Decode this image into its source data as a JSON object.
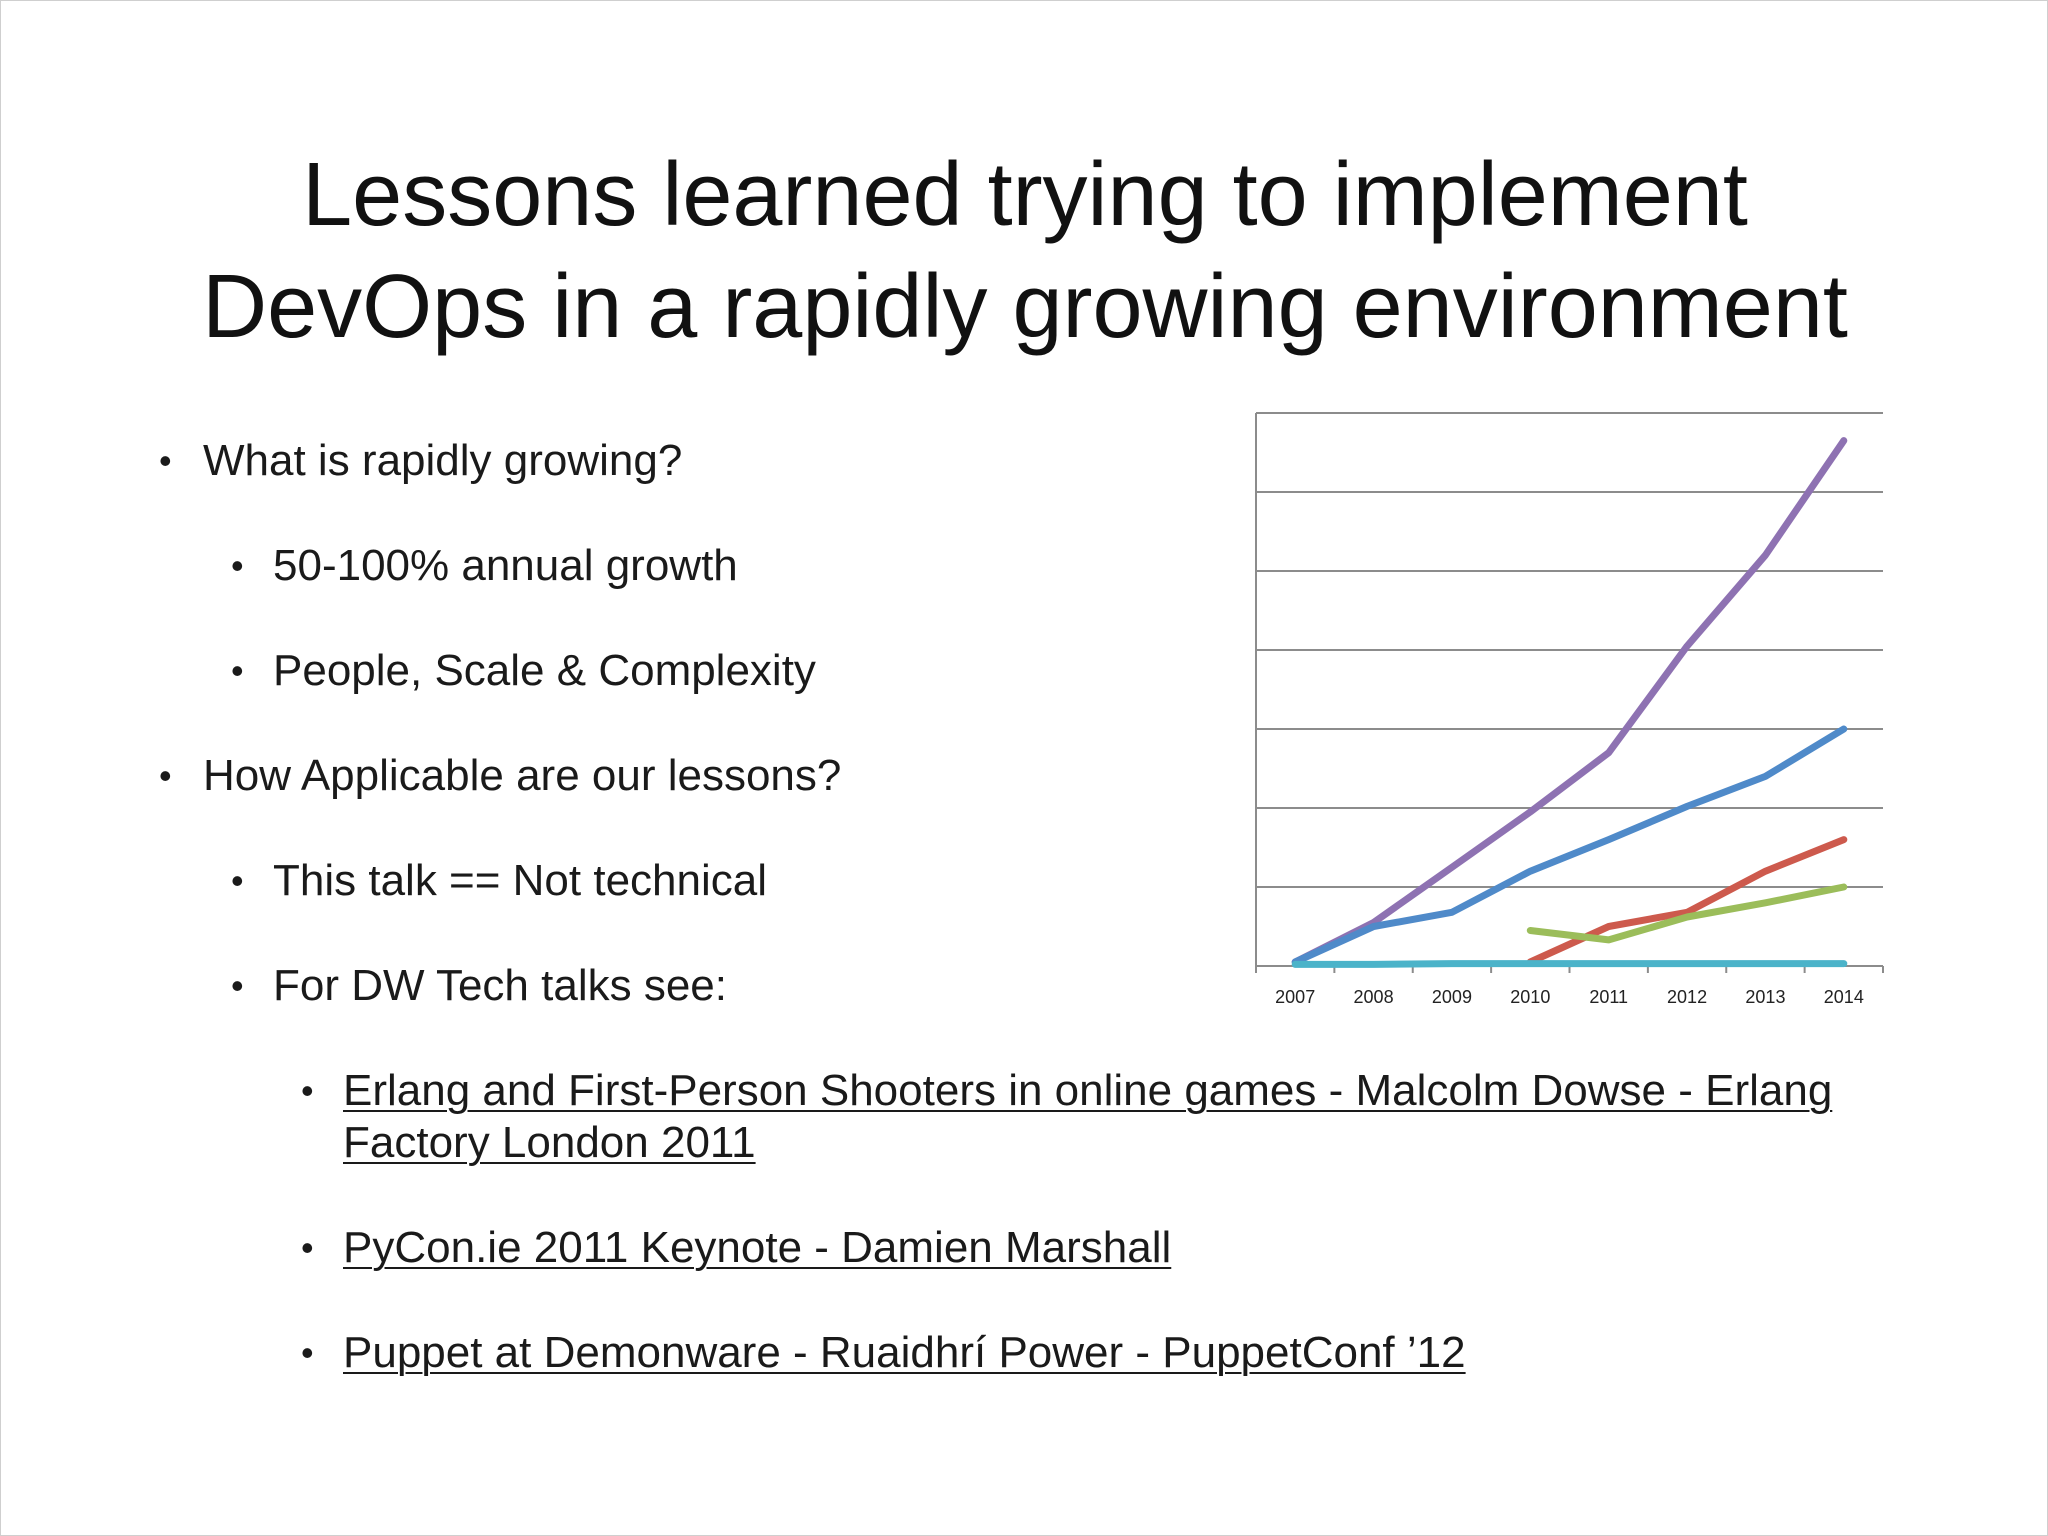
{
  "slide": {
    "title_line1": "Lessons learned trying to implement",
    "title_line2": "DevOps in a rapidly growing environment",
    "bullets": [
      {
        "text": "What is rapidly growing?"
      },
      {
        "text": "50-100% annual growth"
      },
      {
        "text": "People, Scale & Complexity"
      },
      {
        "text": "How Applicable are our lessons?"
      },
      {
        "text": "This talk == Not technical"
      },
      {
        "text": "For DW Tech talks see:"
      }
    ],
    "links": [
      {
        "text": "Erlang and First-Person Shooters in online games - Malcolm Dowse - Erlang Factory London 2011"
      },
      {
        "text": "PyCon.ie 2011 Keynote - Damien Marshall"
      },
      {
        "text": "Puppet at Demonware - Ruaidhrí Power - PuppetConf ’12"
      }
    ],
    "bullet_glyph": "•"
  },
  "chart_data": {
    "type": "line",
    "categories": [
      "2007",
      "2008",
      "2009",
      "2010",
      "2011",
      "2012",
      "2013",
      "2014"
    ],
    "ylim": [
      0,
      7
    ],
    "grid": true,
    "legend": "none",
    "series": [
      {
        "color": "#8e72b2",
        "values": [
          0.05,
          0.55,
          1.25,
          1.95,
          2.7,
          4.05,
          5.2,
          6.65
        ]
      },
      {
        "color": "#4f8ac9",
        "values": [
          0.05,
          0.5,
          0.68,
          1.2,
          1.6,
          2.02,
          2.4,
          3.0
        ]
      },
      {
        "color": "#cd5a4d",
        "values": [
          null,
          null,
          null,
          0.05,
          0.5,
          0.68,
          1.2,
          1.6
        ]
      },
      {
        "color": "#9bbd5a",
        "values": [
          null,
          null,
          null,
          0.45,
          0.33,
          0.62,
          0.8,
          1.0
        ]
      },
      {
        "color": "#4bb3c9",
        "values": [
          0.02,
          0.02,
          0.03,
          0.03,
          0.03,
          0.03,
          0.03,
          0.03
        ]
      }
    ]
  }
}
